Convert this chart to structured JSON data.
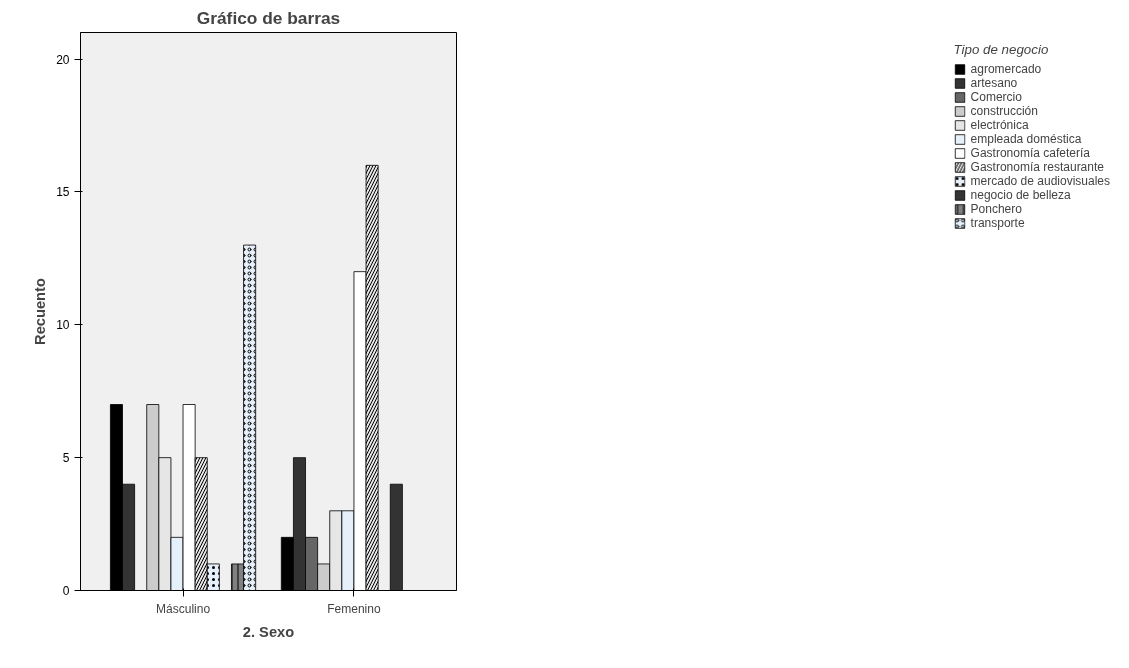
{
  "chart_data": {
    "type": "bar",
    "title": "Gráfico de barras",
    "xlabel": "2. Sexo",
    "ylabel": "Recuento",
    "legend_title": "Tipo de negocio",
    "categories": [
      "Másculino",
      "Femenino"
    ],
    "series": [
      {
        "name": "agromercado",
        "color": "#000000",
        "values": [
          7,
          2
        ]
      },
      {
        "name": "artesano",
        "color": "#333333",
        "values": [
          4,
          5
        ]
      },
      {
        "name": "Comercio",
        "color": "#666666",
        "values": [
          null,
          2
        ]
      },
      {
        "name": "construcción",
        "color": "#cccccc",
        "values": [
          7,
          1
        ]
      },
      {
        "name": "electrónica",
        "color": "#e6e6e6",
        "values": [
          5,
          3
        ]
      },
      {
        "name": "empleada doméstica",
        "color": "#e6f0fa",
        "values": [
          2,
          3
        ]
      },
      {
        "name": "Gastronomía cafetería",
        "color": "#ffffff",
        "values": [
          7,
          12
        ]
      },
      {
        "name": "Gastronomía restaurante",
        "color": "#e6e6e6",
        "values": [
          5,
          16
        ]
      },
      {
        "name": "mercado de audiovisuales",
        "color": "#e6f0fa",
        "values": [
          1,
          null
        ]
      },
      {
        "name": "negocio de belleza",
        "color": "#333333",
        "values": [
          null,
          4
        ]
      },
      {
        "name": "Ponchero",
        "color": "#808080",
        "values": [
          1,
          null
        ]
      },
      {
        "name": "transporte",
        "color": "#e6f0fa",
        "values": [
          13,
          null
        ]
      }
    ],
    "ylim": [
      0,
      21
    ],
    "yticks": [
      0,
      5,
      10,
      15,
      20
    ],
    "grid": false,
    "legend": "right"
  }
}
